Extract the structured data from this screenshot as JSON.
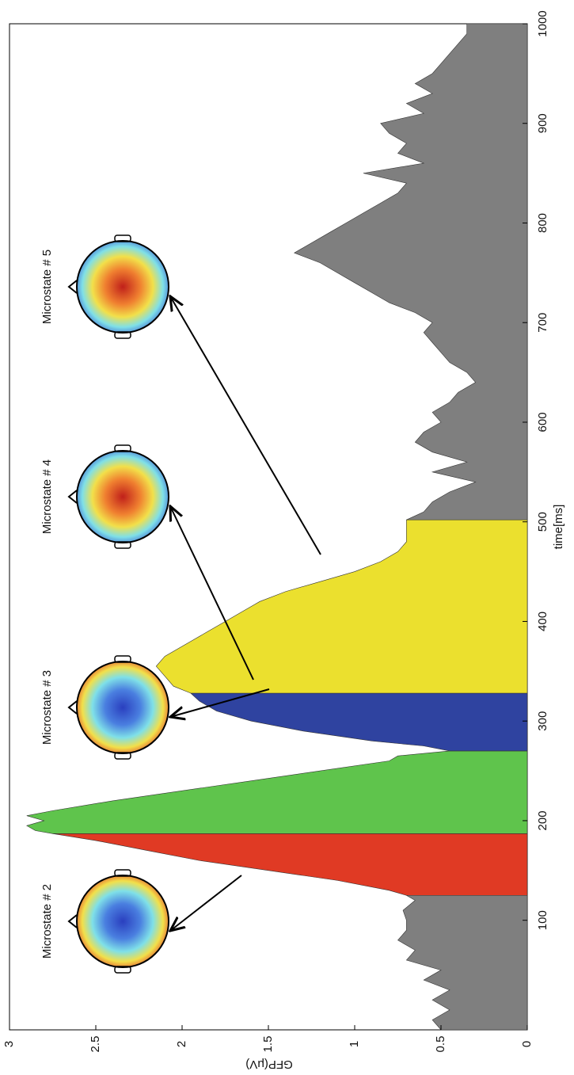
{
  "chart_data": {
    "type": "area",
    "x_label": "time[ms]",
    "y_label": "GFP(μV)",
    "xlim": [
      -10,
      1000
    ],
    "ylim": [
      0,
      3
    ],
    "xticks": [
      100,
      200,
      300,
      400,
      500,
      600,
      700,
      800,
      900,
      1000
    ],
    "yticks": [
      0,
      0.5,
      1,
      1.5,
      2,
      2.5,
      3
    ],
    "x": [
      -10,
      0,
      10,
      20,
      30,
      40,
      50,
      60,
      70,
      80,
      90,
      100,
      110,
      120,
      125,
      130,
      140,
      150,
      160,
      170,
      180,
      187,
      190,
      195,
      200,
      205,
      210,
      220,
      230,
      240,
      250,
      260,
      265,
      270,
      275,
      280,
      290,
      300,
      310,
      320,
      328,
      335,
      345,
      355,
      365,
      380,
      390,
      400,
      410,
      420,
      430,
      440,
      450,
      460,
      470,
      480,
      490,
      502,
      510,
      520,
      530,
      540,
      550,
      560,
      570,
      580,
      590,
      600,
      610,
      620,
      630,
      640,
      650,
      660,
      670,
      680,
      690,
      700,
      710,
      720,
      730,
      740,
      750,
      760,
      770,
      780,
      790,
      800,
      810,
      820,
      830,
      840,
      850,
      860,
      870,
      880,
      890,
      900,
      910,
      920,
      930,
      940,
      950,
      960,
      970,
      980,
      990,
      1000
    ],
    "values": [
      0.5,
      0.55,
      0.45,
      0.55,
      0.45,
      0.6,
      0.5,
      0.7,
      0.65,
      0.75,
      0.7,
      0.7,
      0.72,
      0.65,
      0.7,
      0.8,
      1.1,
      1.5,
      1.9,
      2.2,
      2.5,
      2.75,
      2.85,
      2.9,
      2.8,
      2.9,
      2.75,
      2.4,
      2.0,
      1.6,
      1.2,
      0.8,
      0.75,
      0.45,
      0.6,
      0.9,
      1.3,
      1.6,
      1.8,
      1.9,
      1.95,
      2.05,
      2.1,
      2.15,
      2.1,
      1.95,
      1.85,
      1.75,
      1.65,
      1.55,
      1.4,
      1.2,
      1.0,
      0.85,
      0.75,
      0.7,
      0.7,
      0.7,
      0.6,
      0.55,
      0.45,
      0.3,
      0.55,
      0.35,
      0.55,
      0.65,
      0.6,
      0.5,
      0.55,
      0.45,
      0.4,
      0.3,
      0.35,
      0.45,
      0.5,
      0.55,
      0.6,
      0.55,
      0.65,
      0.8,
      0.9,
      1.0,
      1.1,
      1.2,
      1.35,
      1.25,
      1.15,
      1.05,
      0.95,
      0.85,
      0.75,
      0.7,
      0.95,
      0.6,
      0.75,
      0.7,
      0.8,
      0.85,
      0.6,
      0.7,
      0.55,
      0.65,
      0.55,
      0.5,
      0.45,
      0.4,
      0.35,
      0.35
    ],
    "segments": [
      {
        "start": -10,
        "end": 125,
        "color": "#7f7f7f"
      },
      {
        "start": 125,
        "end": 187,
        "color": "#e03a24",
        "label": "Microstate # 2"
      },
      {
        "start": 187,
        "end": 270,
        "color": "#5fc44c",
        "label": "Microstate # 3"
      },
      {
        "start": 270,
        "end": 328,
        "color": "#2f43a0",
        "label": "Microstate # 4"
      },
      {
        "start": 328,
        "end": 502,
        "color": "#ebe02e",
        "label": "Microstate # 5"
      },
      {
        "start": 502,
        "end": 1000,
        "color": "#7f7f7f"
      }
    ]
  }
}
